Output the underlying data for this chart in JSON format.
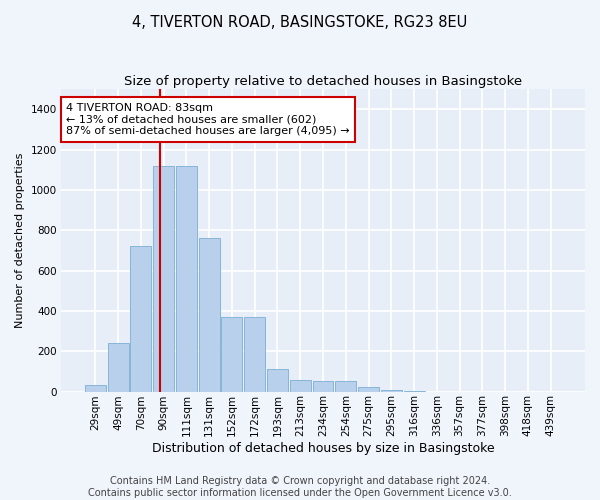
{
  "title": "4, TIVERTON ROAD, BASINGSTOKE, RG23 8EU",
  "subtitle": "Size of property relative to detached houses in Basingstoke",
  "xlabel": "Distribution of detached houses by size in Basingstoke",
  "ylabel": "Number of detached properties",
  "footer_line1": "Contains HM Land Registry data © Crown copyright and database right 2024.",
  "footer_line2": "Contains public sector information licensed under the Open Government Licence v3.0.",
  "bar_labels": [
    "29sqm",
    "49sqm",
    "70sqm",
    "90sqm",
    "111sqm",
    "131sqm",
    "152sqm",
    "172sqm",
    "193sqm",
    "213sqm",
    "234sqm",
    "254sqm",
    "275sqm",
    "295sqm",
    "316sqm",
    "336sqm",
    "357sqm",
    "377sqm",
    "398sqm",
    "418sqm",
    "439sqm"
  ],
  "bar_values": [
    30,
    240,
    720,
    1120,
    1120,
    760,
    370,
    370,
    110,
    55,
    50,
    50,
    25,
    10,
    5,
    0,
    0,
    0,
    0,
    0,
    0
  ],
  "bar_color": "#b8d0eb",
  "bar_edge_color": "#7aafd4",
  "background_color": "#e8eef8",
  "grid_color": "#ffffff",
  "vline_color": "#cc0000",
  "vline_pos": 2.85,
  "annotation_text": "4 TIVERTON ROAD: 83sqm\n← 13% of detached houses are smaller (602)\n87% of semi-detached houses are larger (4,095) →",
  "annotation_box_color": "#cc0000",
  "ylim": [
    0,
    1500
  ],
  "yticks": [
    0,
    200,
    400,
    600,
    800,
    1000,
    1200,
    1400
  ],
  "title_fontsize": 10.5,
  "subtitle_fontsize": 9.5,
  "xlabel_fontsize": 9,
  "ylabel_fontsize": 8,
  "tick_fontsize": 7.5,
  "annotation_fontsize": 8,
  "footer_fontsize": 7
}
